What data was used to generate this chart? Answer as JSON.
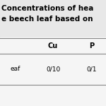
{
  "title_line1": "Concentrations of hea",
  "title_line2": "e beech leaf based on",
  "col_headers": [
    "",
    "Cu",
    "P"
  ],
  "rows": [
    [
      "eaf",
      "0/10",
      "0/1"
    ]
  ],
  "bg_color": "#e8e8e8",
  "table_bg_color": "#f5f5f5",
  "font_size": 6.5,
  "title_font_size": 7.5,
  "header_font_size": 7.0
}
